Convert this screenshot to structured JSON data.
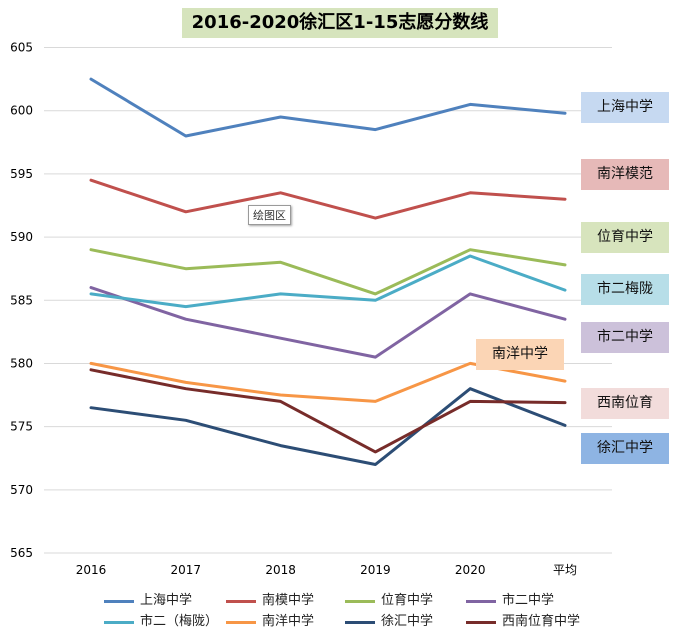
{
  "chart_data": {
    "type": "line",
    "title": "2016-2020徐汇区1-15志愿分数线",
    "categories": [
      "2016",
      "2017",
      "2018",
      "2019",
      "2020",
      "平均"
    ],
    "ylim": [
      565,
      605
    ],
    "yticks": [
      565,
      570,
      575,
      580,
      585,
      590,
      595,
      600,
      605
    ],
    "grid": true,
    "legend_position": "bottom",
    "series": [
      {
        "name": "上海中学",
        "color": "#4f81bd",
        "values": [
          602.5,
          598,
          599.5,
          598.5,
          600.5,
          599.8
        ]
      },
      {
        "name": "南模中学",
        "color": "#c0504d",
        "values": [
          594.5,
          592,
          593.5,
          591.5,
          593.5,
          593
        ]
      },
      {
        "name": "位育中学",
        "color": "#9bbb59",
        "values": [
          589,
          587.5,
          588,
          585.5,
          589,
          587.8
        ]
      },
      {
        "name": "市二中学",
        "color": "#8064a2",
        "values": [
          586,
          583.5,
          582,
          580.5,
          585.5,
          583.5
        ]
      },
      {
        "name": "市二（梅陇）",
        "color": "#4bacc6",
        "values": [
          585.5,
          584.5,
          585.5,
          585,
          588.5,
          585.8
        ]
      },
      {
        "name": "南洋中学",
        "color": "#f79646",
        "values": [
          580,
          578.5,
          577.5,
          577,
          580,
          578.6
        ]
      },
      {
        "name": "徐汇中学",
        "color": "#2c4d75",
        "values": [
          576.5,
          575.5,
          573.5,
          572,
          578,
          575.1
        ]
      },
      {
        "name": "西南位育中学",
        "color": "#772c2a",
        "values": [
          579.5,
          578,
          577,
          573,
          577,
          576.9
        ]
      }
    ],
    "annotations": [
      {
        "text": "上海中学",
        "bg": "#c6d9f1"
      },
      {
        "text": "南洋模范",
        "bg": "#e6b9b8"
      },
      {
        "text": "位育中学",
        "bg": "#d7e4bd"
      },
      {
        "text": "市二梅陇",
        "bg": "#b7dee8"
      },
      {
        "text": "市二中学",
        "bg": "#ccc1da"
      },
      {
        "text": "南洋中学",
        "bg": "#fbd5b5"
      },
      {
        "text": "西南位育",
        "bg": "#f2dcdb"
      },
      {
        "text": "徐汇中学",
        "bg": "#8eb4e3"
      }
    ],
    "tooltip": "绘图区"
  }
}
